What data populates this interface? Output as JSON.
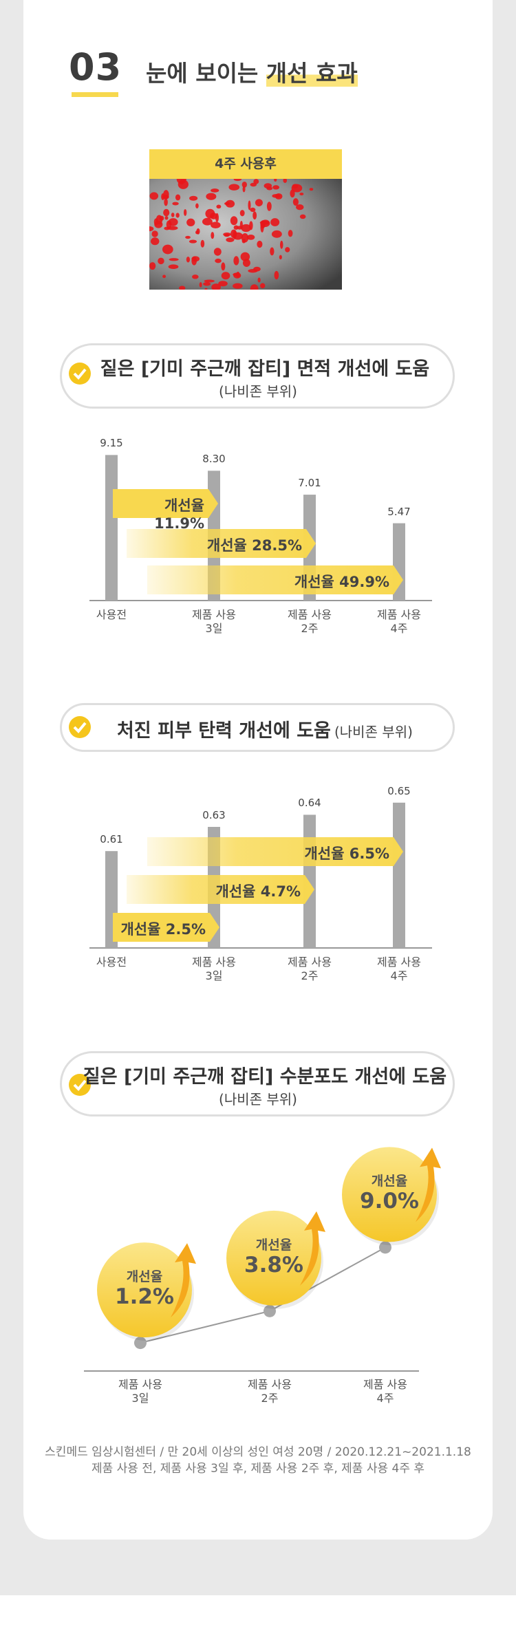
{
  "header": {
    "number": "03",
    "title": "눈에 보이는",
    "highlight": "개선 효과"
  },
  "image": {
    "label": "4주 사용후"
  },
  "chart_data": [
    {
      "type": "bar",
      "title": "짙은 [기미 주근깨 잡티] 면적 개선에 도움",
      "subtitle": "(나비존 부위)",
      "categories": [
        "사용전",
        "제품 사용\n3일",
        "제품 사용\n2주",
        "제품 사용\n4주"
      ],
      "values": [
        9.15,
        8.3,
        7.01,
        5.47
      ],
      "value_labels": [
        "9.15",
        "8.30",
        "7.01",
        "5.47"
      ],
      "annotations": [
        "개선율 11.9%",
        "개선율 28.5%",
        "개선율 49.9%"
      ],
      "color": "#a9a9a9",
      "annotation_color": "#f8d84f",
      "ylim": [
        1.3,
        10.5
      ]
    },
    {
      "type": "bar",
      "title": "처진 피부 탄력 개선에 도움",
      "subtitle": "(나비존 부위)",
      "categories": [
        "사용전",
        "제품 사용\n3일",
        "제품 사용\n2주",
        "제품 사용\n4주"
      ],
      "values": [
        0.61,
        0.63,
        0.64,
        0.65
      ],
      "annotations": [
        "개선율 6.5%",
        "개선율 4.7%",
        "개선율 2.5%"
      ],
      "color": "#a9a9a9",
      "annotation_color": "#f8d84f",
      "ylim": [
        0.53,
        0.68
      ]
    },
    {
      "type": "line",
      "title": "짙은 [기미 주근깨 잡티] 수분포도 개선에 도움",
      "subtitle": "(나비존 부위)",
      "categories": [
        "제품 사용\n3일",
        "제품 사용\n2주",
        "제품 사용\n4주"
      ],
      "values": [
        1.2,
        3.8,
        9.0
      ],
      "value_labels": [
        "1.2%",
        "3.8%",
        "9.0%"
      ],
      "bubble_label": "개선율",
      "color": "#9a9a9a",
      "ylim": [
        -1.1,
        12
      ]
    }
  ],
  "footnote": [
    "스킨메드 임상시험센터 / 만 20세 이상의 성인 여성 20명 / 2020.12.21~2021.1.18",
    "제품 사용 전, 제품 사용 3일 후, 제품 사용 2주 후, 제품 사용 4주 후"
  ]
}
